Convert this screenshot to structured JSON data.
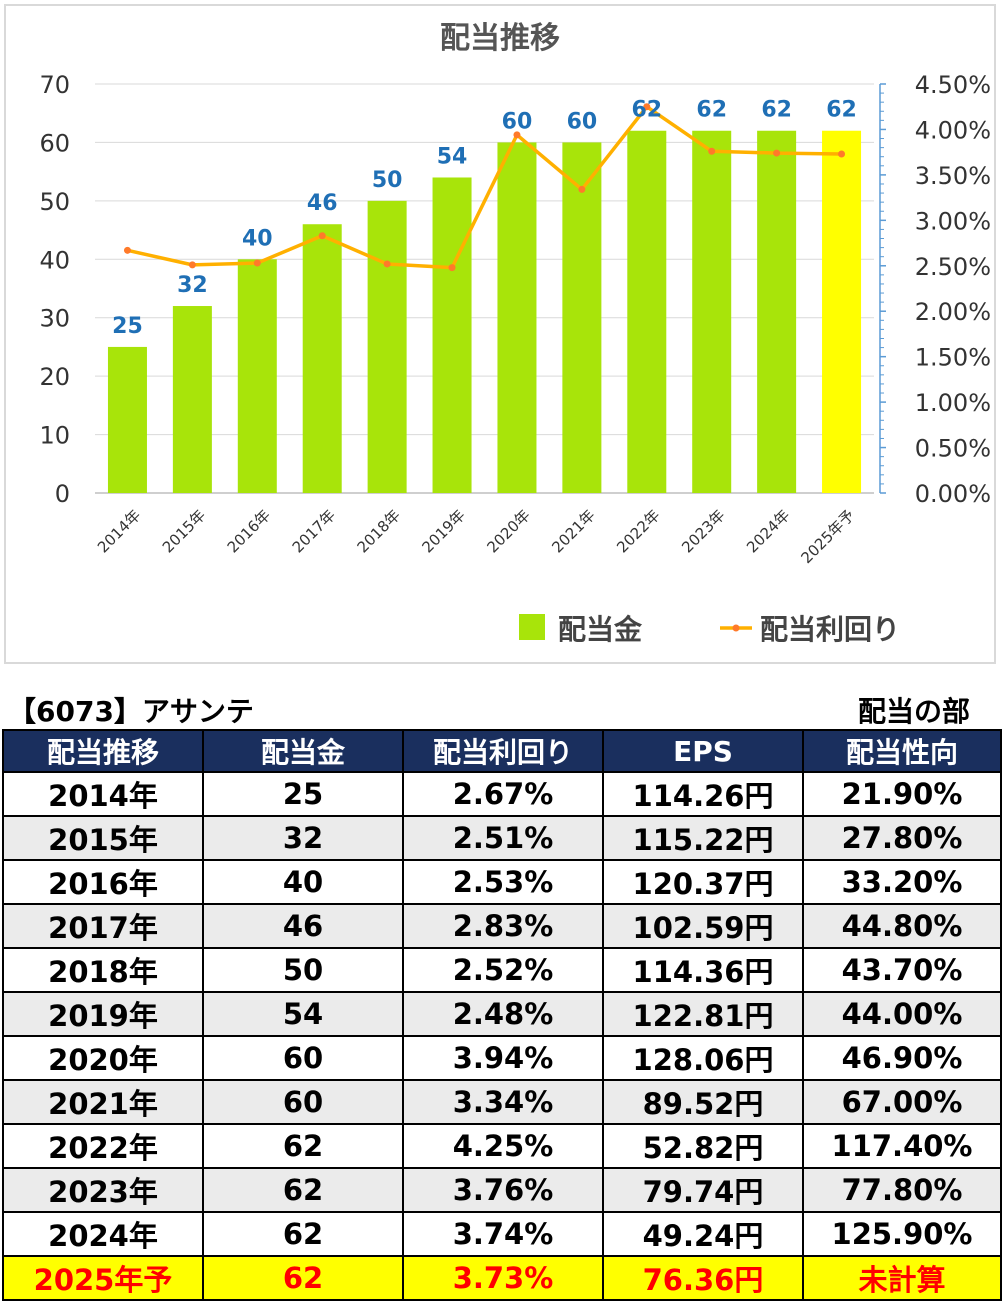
{
  "chart_data": {
    "type": "bar",
    "title": "配当推移",
    "categories": [
      "2014年",
      "2015年",
      "2016年",
      "2017年",
      "2018年",
      "2019年",
      "2020年",
      "2021年",
      "2022年",
      "2023年",
      "2024年",
      "2025年予"
    ],
    "series": [
      {
        "name": "配当金",
        "kind": "bar",
        "axis": "left",
        "color": "#a8e40a",
        "highlight_last_color": "#ffff00",
        "values": [
          25,
          32,
          40,
          46,
          50,
          54,
          60,
          60,
          62,
          62,
          62,
          62
        ]
      },
      {
        "name": "配当利回り",
        "kind": "line",
        "axis": "right",
        "color": "#ffb000",
        "marker_color": "#ff7a2a",
        "values": [
          2.67,
          2.51,
          2.53,
          2.83,
          2.52,
          2.48,
          3.94,
          3.34,
          4.25,
          3.76,
          3.74,
          3.73
        ]
      }
    ],
    "y_left": {
      "min": 0,
      "max": 70,
      "ticks": [
        "0",
        "10",
        "20",
        "30",
        "40",
        "50",
        "60",
        "70"
      ]
    },
    "y_right": {
      "min": 0,
      "max": 4.5,
      "ticks": [
        "0.00%",
        "0.50%",
        "1.00%",
        "1.50%",
        "2.00%",
        "2.50%",
        "3.00%",
        "3.50%",
        "4.00%",
        "4.50%"
      ]
    },
    "data_labels": [
      "25",
      "32",
      "40",
      "46",
      "50",
      "54",
      "60",
      "60",
      "62",
      "62",
      "62",
      "62"
    ],
    "data_label_color": "#1f6fb5",
    "grid": true,
    "legend_position": "bottom-right"
  },
  "header": {
    "company": "【6073】アサンテ",
    "section": "配当の部"
  },
  "table": {
    "headers": [
      "配当推移",
      "配当金",
      "配当利回り",
      "EPS",
      "配当性向"
    ],
    "rows": [
      [
        "2014年",
        "25",
        "2.67%",
        "114.26円",
        "21.90%"
      ],
      [
        "2015年",
        "32",
        "2.51%",
        "115.22円",
        "27.80%"
      ],
      [
        "2016年",
        "40",
        "2.53%",
        "120.37円",
        "33.20%"
      ],
      [
        "2017年",
        "46",
        "2.83%",
        "102.59円",
        "44.80%"
      ],
      [
        "2018年",
        "50",
        "2.52%",
        "114.36円",
        "43.70%"
      ],
      [
        "2019年",
        "54",
        "2.48%",
        "122.81円",
        "44.00%"
      ],
      [
        "2020年",
        "60",
        "3.94%",
        "128.06円",
        "46.90%"
      ],
      [
        "2021年",
        "60",
        "3.34%",
        "89.52円",
        "67.00%"
      ],
      [
        "2022年",
        "62",
        "4.25%",
        "52.82円",
        "117.40%"
      ],
      [
        "2023年",
        "62",
        "3.76%",
        "79.74円",
        "77.80%"
      ],
      [
        "2024年",
        "62",
        "3.74%",
        "49.24円",
        "125.90%"
      ],
      [
        "2025年予",
        "62",
        "3.73%",
        "76.36円",
        "未計算"
      ]
    ],
    "header_bg": "#1a2f5e",
    "forecast_bg": "#ffff00",
    "forecast_text": "#ff0000"
  }
}
